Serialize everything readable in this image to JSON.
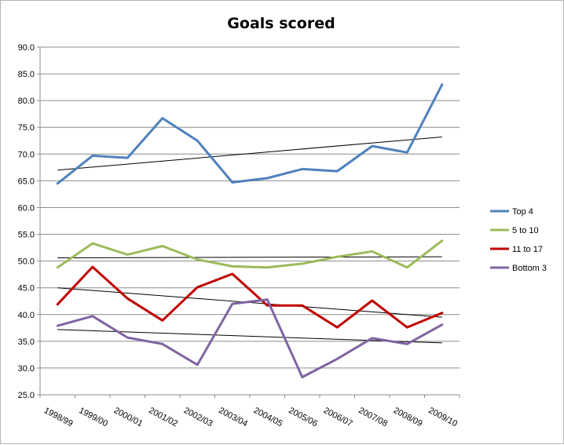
{
  "chart_data": {
    "type": "line",
    "title": "Goals scored",
    "xlabel": "",
    "ylabel": "",
    "ylim": [
      25.0,
      90.0
    ],
    "ytick_step": 5,
    "ytick_labels": [
      "25.0",
      "30.0",
      "35.0",
      "40.0",
      "45.0",
      "50.0",
      "55.0",
      "60.0",
      "65.0",
      "70.0",
      "75.0",
      "80.0",
      "85.0",
      "90.0"
    ],
    "grid": true,
    "legend_position": "right",
    "categories": [
      "1998/99",
      "1999/00",
      "2000/01",
      "2001/02",
      "2002/03",
      "2003/04",
      "2004/05",
      "2005/06",
      "2006/07",
      "2007/08",
      "2008/09",
      "2009/10"
    ],
    "series": [
      {
        "name": "Top 4",
        "color": "#4f81bd",
        "values": [
          64.5,
          69.7,
          69.3,
          76.7,
          72.5,
          64.7,
          65.5,
          67.2,
          66.8,
          71.5,
          70.3,
          83.0
        ]
      },
      {
        "name": "5 to 10",
        "color": "#9bbb59",
        "values": [
          48.8,
          53.3,
          51.2,
          52.8,
          50.3,
          49.0,
          48.8,
          49.5,
          50.8,
          51.8,
          48.8,
          53.8
        ]
      },
      {
        "name": "11 to 17",
        "color": "#c00000",
        "values": [
          41.9,
          48.9,
          43.0,
          38.9,
          45.1,
          47.6,
          41.7,
          41.7,
          37.6,
          42.6,
          37.6,
          40.3
        ]
      },
      {
        "name": "Bottom 3",
        "color": "#8064a2",
        "values": [
          37.9,
          39.7,
          35.7,
          34.5,
          30.6,
          42.0,
          42.8,
          28.3,
          31.7,
          35.6,
          34.5,
          38.1
        ]
      }
    ],
    "trendlines": [
      {
        "series": "Top 4",
        "color": "#000000",
        "start": 67.0,
        "end": 73.2
      },
      {
        "series": "5 to 10",
        "color": "#000000",
        "start": 50.6,
        "end": 50.8
      },
      {
        "series": "11 to 17",
        "color": "#000000",
        "start": 45.0,
        "end": 39.5
      },
      {
        "series": "Bottom 3",
        "color": "#000000",
        "start": 37.2,
        "end": 34.7
      }
    ]
  }
}
